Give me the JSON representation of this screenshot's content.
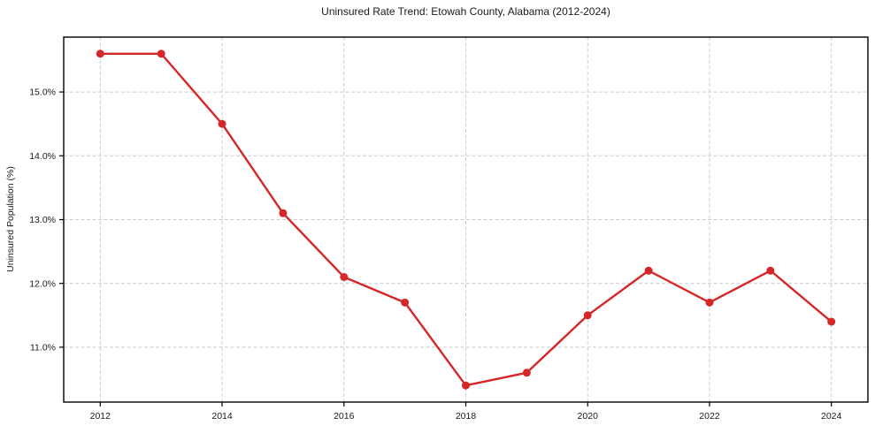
{
  "chart_data": {
    "type": "line",
    "title": "Uninsured Rate Trend: Etowah County, Alabama (2012-2024)",
    "xlabel": "",
    "ylabel": "Uninsured Population (%)",
    "x": [
      2012,
      2013,
      2014,
      2015,
      2016,
      2017,
      2018,
      2019,
      2020,
      2021,
      2022,
      2023,
      2024
    ],
    "values": [
      15.6,
      15.6,
      14.5,
      13.1,
      12.1,
      11.7,
      10.4,
      10.6,
      11.5,
      12.2,
      11.7,
      12.2,
      11.4
    ],
    "unit": "%",
    "xticks": [
      2012,
      2014,
      2016,
      2018,
      2020,
      2022,
      2024
    ],
    "xtick_labels": [
      "2012",
      "2014",
      "2016",
      "2018",
      "2020",
      "2022",
      "2024"
    ],
    "yticks": [
      11,
      12,
      13,
      14,
      15
    ],
    "ytick_labels": [
      "11.0%",
      "12.0%",
      "13.0%",
      "14.0%",
      "15.0%"
    ],
    "xlim": [
      2011.4,
      2024.6
    ],
    "ylim": [
      10.14,
      15.86
    ],
    "grid": true,
    "grid_style": "dashed",
    "legend": false,
    "marker": "circle",
    "line_color": "#d62728",
    "grid_color": "#cccccc",
    "axis_color": "#000000",
    "text_color": "#1a1a1a",
    "background": "#ffffff"
  }
}
